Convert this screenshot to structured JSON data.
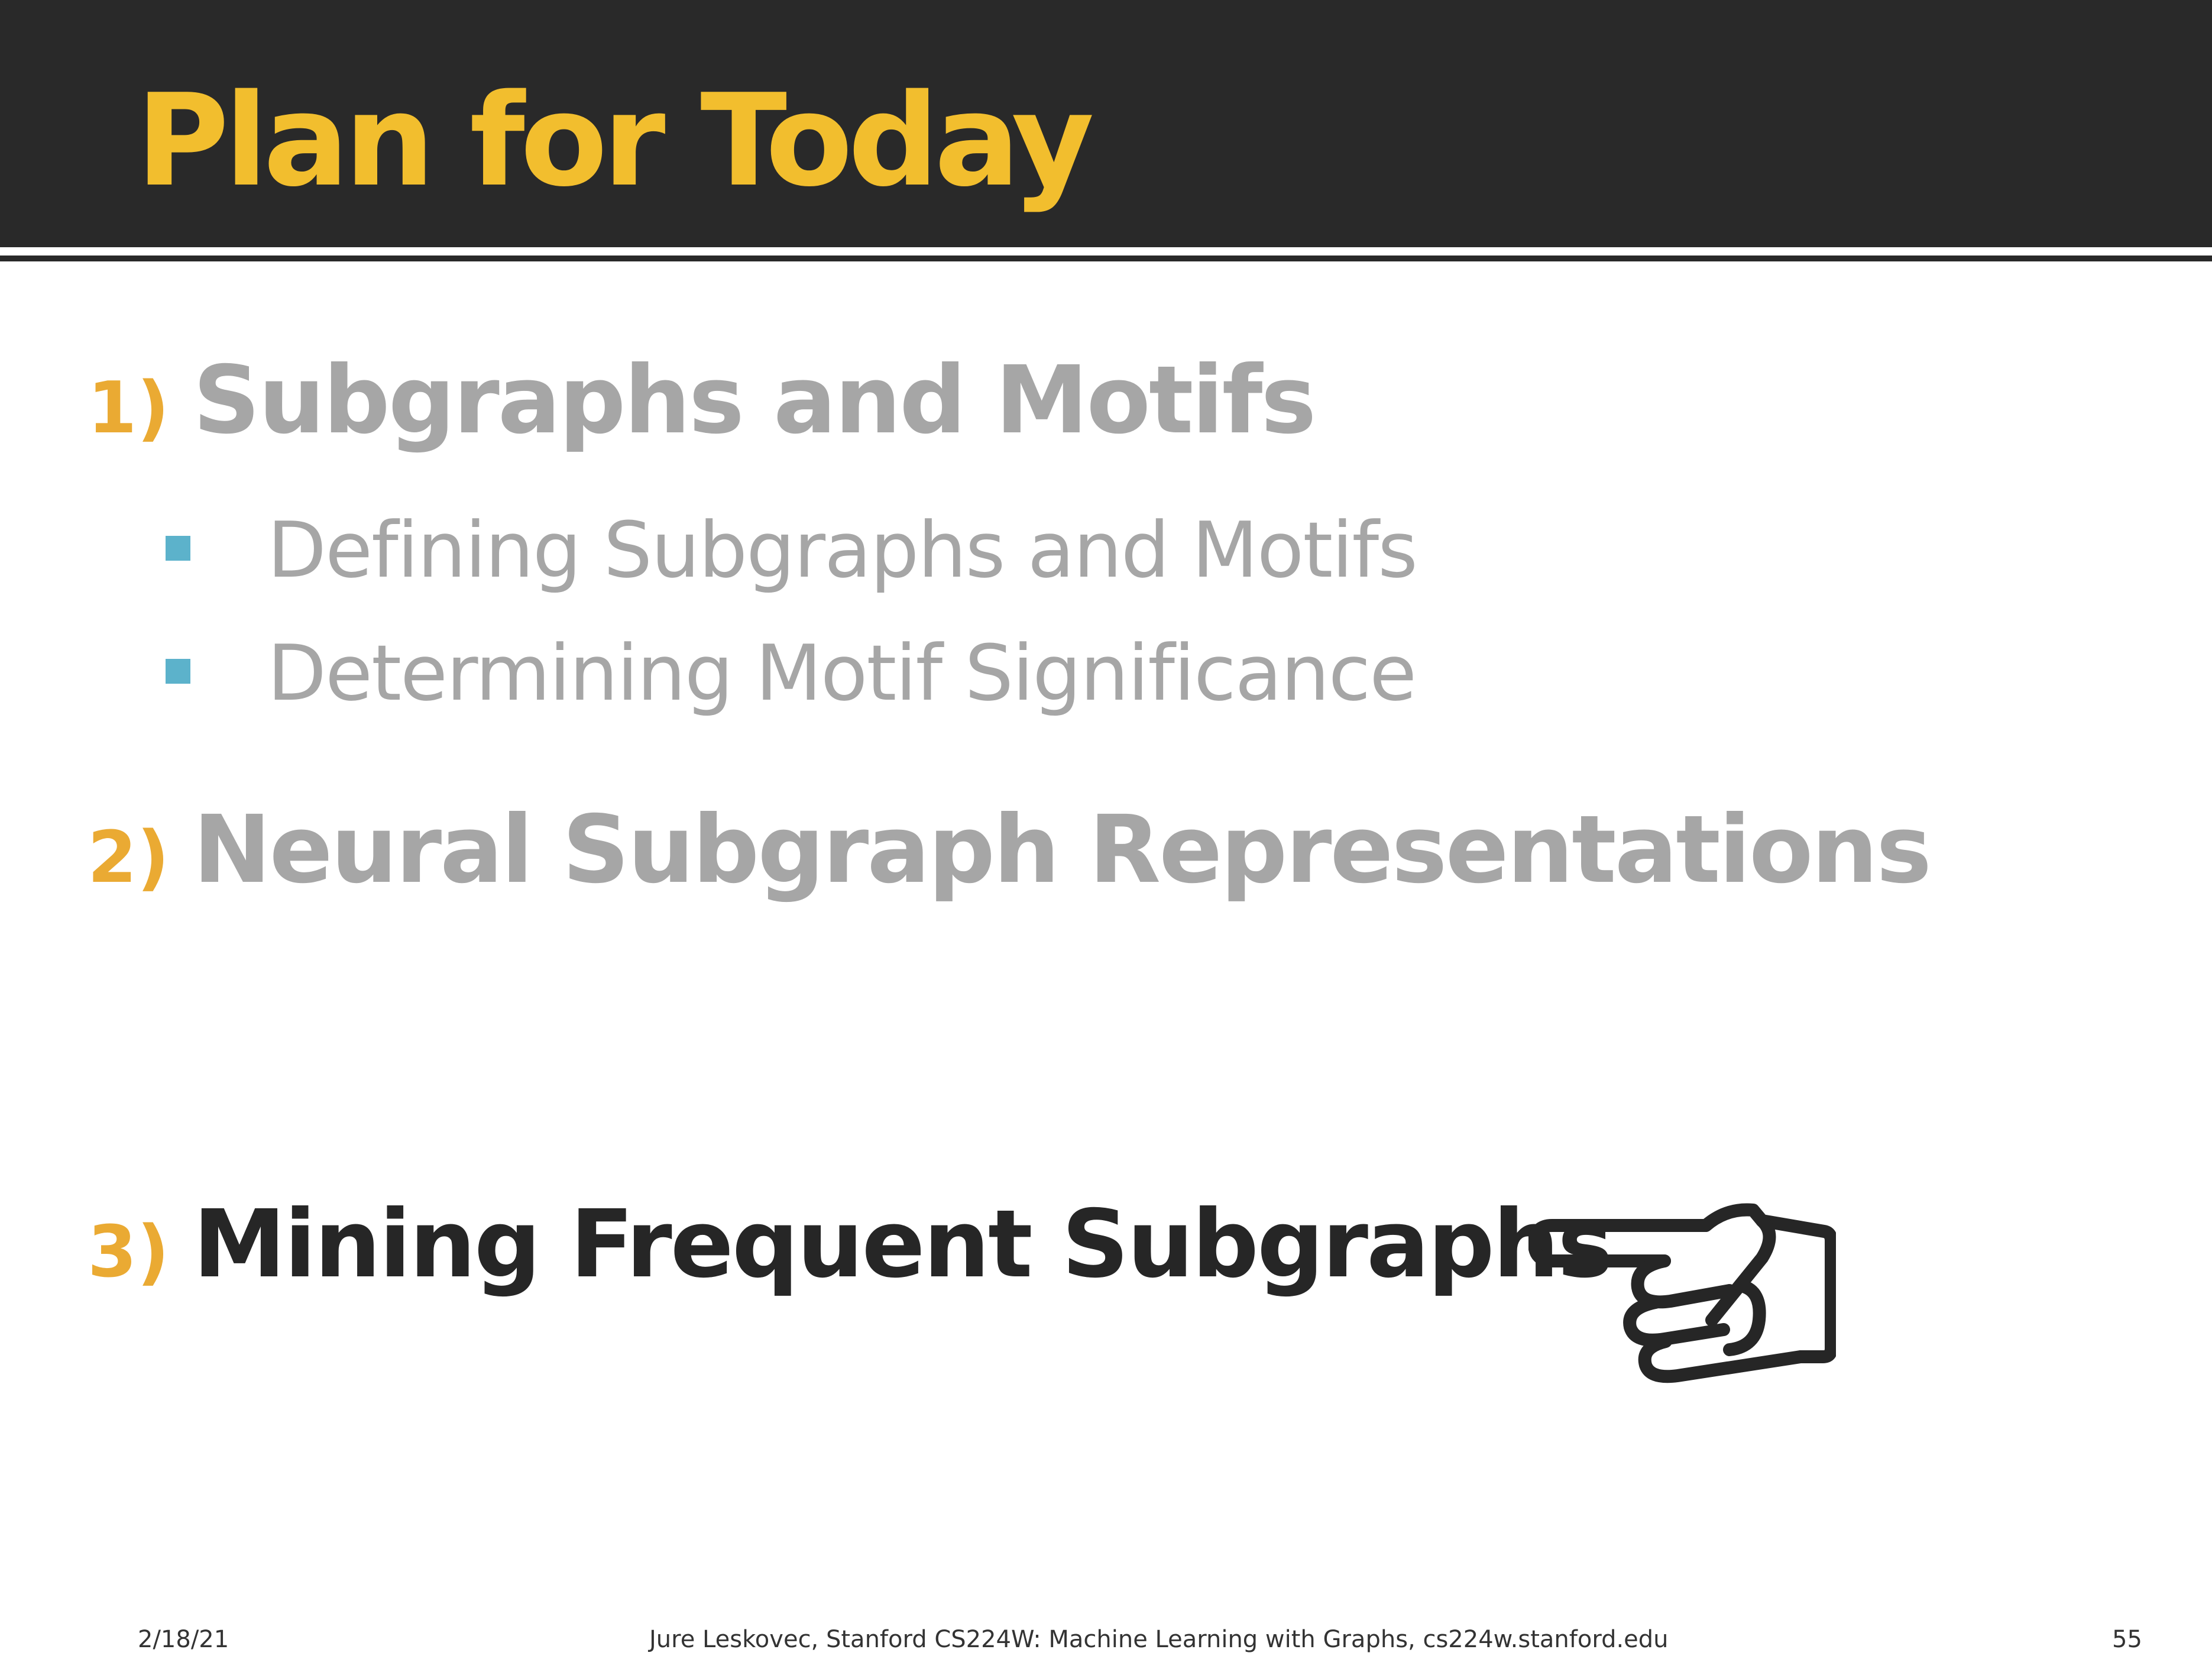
{
  "slide": {
    "title": "Plan for Today",
    "colors": {
      "header_bg": "#292929",
      "title": "#F2BE2E",
      "number": "#EAAA33",
      "muted": "#A6A6A6",
      "active": "#262626",
      "bullet": "#5CB2CB"
    },
    "sections": [
      {
        "number": "1)",
        "label": "Subgraphs and Motifs",
        "items": [
          "Defining Subgraphs and Motifs",
          "Determining Motif Significance"
        ]
      },
      {
        "number": "2)",
        "label": "Neural Subgraph Representations"
      },
      {
        "number": "3)",
        "label": "Mining Frequent Subgraphs",
        "pointer_icon": "pointing-hand-icon"
      }
    ]
  },
  "footer": {
    "date": "2/18/21",
    "credit": "Jure Leskovec, Stanford CS224W: Machine Learning with Graphs, cs224w.stanford.edu",
    "page": "55"
  }
}
